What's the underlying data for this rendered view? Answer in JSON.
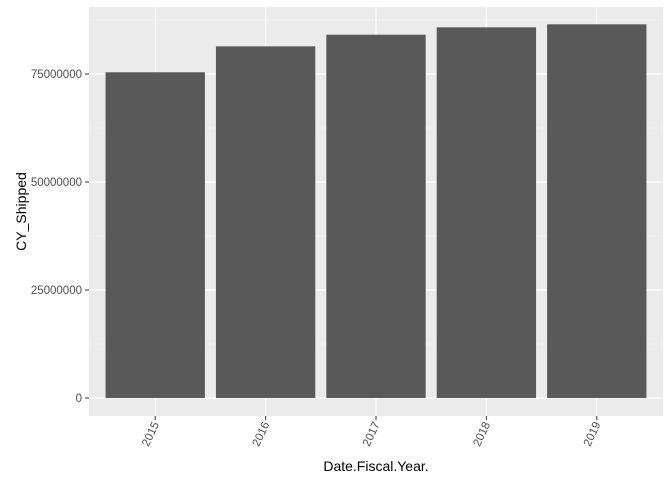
{
  "chart_data": {
    "type": "bar",
    "title": "",
    "xlabel": "Date.Fiscal.Year.",
    "ylabel": "CY_Shipped",
    "categories": [
      "2015",
      "2016",
      "2017",
      "2018",
      "2019"
    ],
    "values": [
      75400000,
      81400000,
      84100000,
      85800000,
      86500000
    ],
    "ylim": [
      0,
      90000000
    ],
    "yticks": [
      0,
      25000000,
      50000000,
      75000000
    ],
    "ytick_labels": [
      "0",
      "25000000",
      "50000000",
      "75000000"
    ],
    "grid": true,
    "legend": "none",
    "colors": {
      "bar": "#595959",
      "panel_background": "#ebebeb",
      "grid_major": "#ffffff",
      "grid_minor": "#f5f5f5",
      "tick_label": "#4d4d4d",
      "axis_title": "#000000"
    }
  }
}
